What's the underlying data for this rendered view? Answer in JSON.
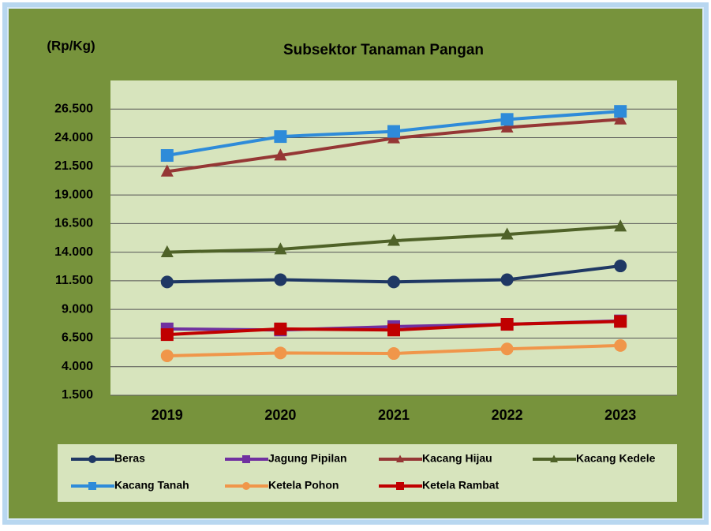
{
  "chart_data": {
    "type": "line",
    "title": "Subsektor Tanaman Pangan",
    "y_label": "(Rp/Kg)",
    "categories": [
      "2019",
      "2020",
      "2021",
      "2022",
      "2023"
    ],
    "ylim": [
      1500,
      29000
    ],
    "yticks": [
      {
        "value": 1500,
        "label": "1.500"
      },
      {
        "value": 4000,
        "label": "4.000"
      },
      {
        "value": 6500,
        "label": "6.500"
      },
      {
        "value": 9000,
        "label": "9.000"
      },
      {
        "value": 11500,
        "label": "11.500"
      },
      {
        "value": 14000,
        "label": "14.000"
      },
      {
        "value": 16500,
        "label": "16.500"
      },
      {
        "value": 19000,
        "label": "19.000"
      },
      {
        "value": 21500,
        "label": "21.500"
      },
      {
        "value": 24000,
        "label": "24.000"
      },
      {
        "value": 26500,
        "label": "26.500"
      }
    ],
    "grid": true,
    "legend": "bottom",
    "series": [
      {
        "name": "Beras",
        "color": "#1f3864",
        "marker": "circle",
        "values": [
          11400,
          11600,
          11400,
          11600,
          12800
        ]
      },
      {
        "name": "Jagung Pipilan",
        "color": "#7030a0",
        "marker": "square",
        "values": [
          7300,
          7200,
          7500,
          7700,
          8000
        ]
      },
      {
        "name": "Kacang Hijau",
        "color": "#953735",
        "marker": "triangle",
        "values": [
          21050,
          22450,
          23950,
          24900,
          25600
        ]
      },
      {
        "name": "Kacang Kedele",
        "color": "#4f6228",
        "marker": "triangle",
        "values": [
          14000,
          14250,
          15000,
          15550,
          16250
        ]
      },
      {
        "name": "Kacang Tanah",
        "color": "#2e8bd9",
        "marker": "square",
        "values": [
          22450,
          24100,
          24550,
          25600,
          26300
        ]
      },
      {
        "name": "Ketela Pohon",
        "color": "#f0964a",
        "marker": "circle",
        "values": [
          4950,
          5200,
          5150,
          5550,
          5850
        ]
      },
      {
        "name": "Ketela Rambat",
        "color": "#c00000",
        "marker": "square",
        "values": [
          6800,
          7300,
          7200,
          7700,
          7950
        ]
      }
    ]
  }
}
